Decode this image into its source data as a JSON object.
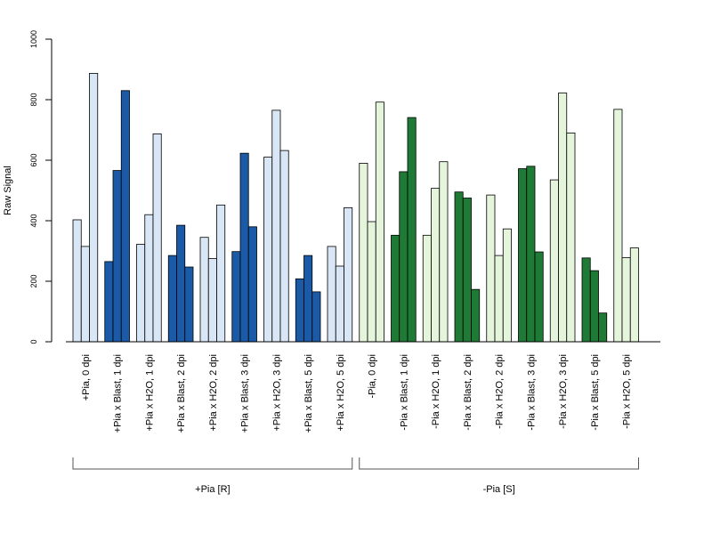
{
  "chart_data": {
    "type": "bar",
    "ylabel": "Raw Signal",
    "xlabel": "",
    "title": "",
    "ylim": [
      0,
      1000
    ],
    "yticks": [
      0,
      200,
      400,
      600,
      800,
      1000
    ],
    "grid": false,
    "legend": "none",
    "categories": [
      {
        "label": "+Pia, 0 dpi",
        "color": "#d9e6f5",
        "values": [
          403,
          315,
          887
        ]
      },
      {
        "label": "+Pia x Blast, 1 dpi",
        "color": "#1a5aa6",
        "values": [
          265,
          566,
          830
        ]
      },
      {
        "label": "+Pia x H2O, 1 dpi",
        "color": "#d9e6f5",
        "values": [
          322,
          420,
          687
        ]
      },
      {
        "label": "+Pia x Blast, 2 dpi",
        "color": "#1a5aa6",
        "values": [
          285,
          385,
          247
        ]
      },
      {
        "label": "+Pia x H2O, 2 dpi",
        "color": "#d9e6f5",
        "values": [
          345,
          275,
          452
        ]
      },
      {
        "label": "+Pia x Blast, 3 dpi",
        "color": "#1a5aa6",
        "values": [
          298,
          623,
          380
        ]
      },
      {
        "label": "+Pia x H2O, 3 dpi",
        "color": "#d9e6f5",
        "values": [
          610,
          765,
          632
        ]
      },
      {
        "label": "+Pia x Blast, 5 dpi",
        "color": "#1a5aa6",
        "values": [
          208,
          285,
          165
        ]
      },
      {
        "label": "+Pia x H2O, 5 dpi",
        "color": "#d9e6f5",
        "values": [
          315,
          250,
          443
        ]
      },
      {
        "label": "-Pia, 0 dpi",
        "color": "#e4f5dc",
        "values": [
          590,
          397,
          792
        ]
      },
      {
        "label": "-Pia x Blast, 1 dpi",
        "color": "#1f7a35",
        "values": [
          352,
          562,
          741
        ]
      },
      {
        "label": "-Pia x H2O, 1 dpi",
        "color": "#e4f5dc",
        "values": [
          352,
          507,
          595
        ]
      },
      {
        "label": "-Pia x Blast, 2 dpi",
        "color": "#1f7a35",
        "values": [
          495,
          475,
          173
        ]
      },
      {
        "label": "-Pia x H2O, 2 dpi",
        "color": "#e4f5dc",
        "values": [
          485,
          285,
          373
        ]
      },
      {
        "label": "-Pia x Blast, 3 dpi",
        "color": "#1f7a35",
        "values": [
          572,
          580,
          297
        ]
      },
      {
        "label": "-Pia x H2O, 3 dpi",
        "color": "#e4f5dc",
        "values": [
          535,
          822,
          690
        ]
      },
      {
        "label": "-Pia x Blast, 5 dpi",
        "color": "#1f7a35",
        "values": [
          277,
          235,
          95
        ]
      },
      {
        "label": "-Pia x H2O, 5 dpi",
        "color": "#e4f5dc",
        "values": [
          768,
          278,
          310
        ]
      }
    ],
    "groups": [
      {
        "label": "+Pia [R]",
        "from": 0,
        "to": 8
      },
      {
        "label": "-Pia [S]",
        "from": 9,
        "to": 17
      }
    ]
  }
}
